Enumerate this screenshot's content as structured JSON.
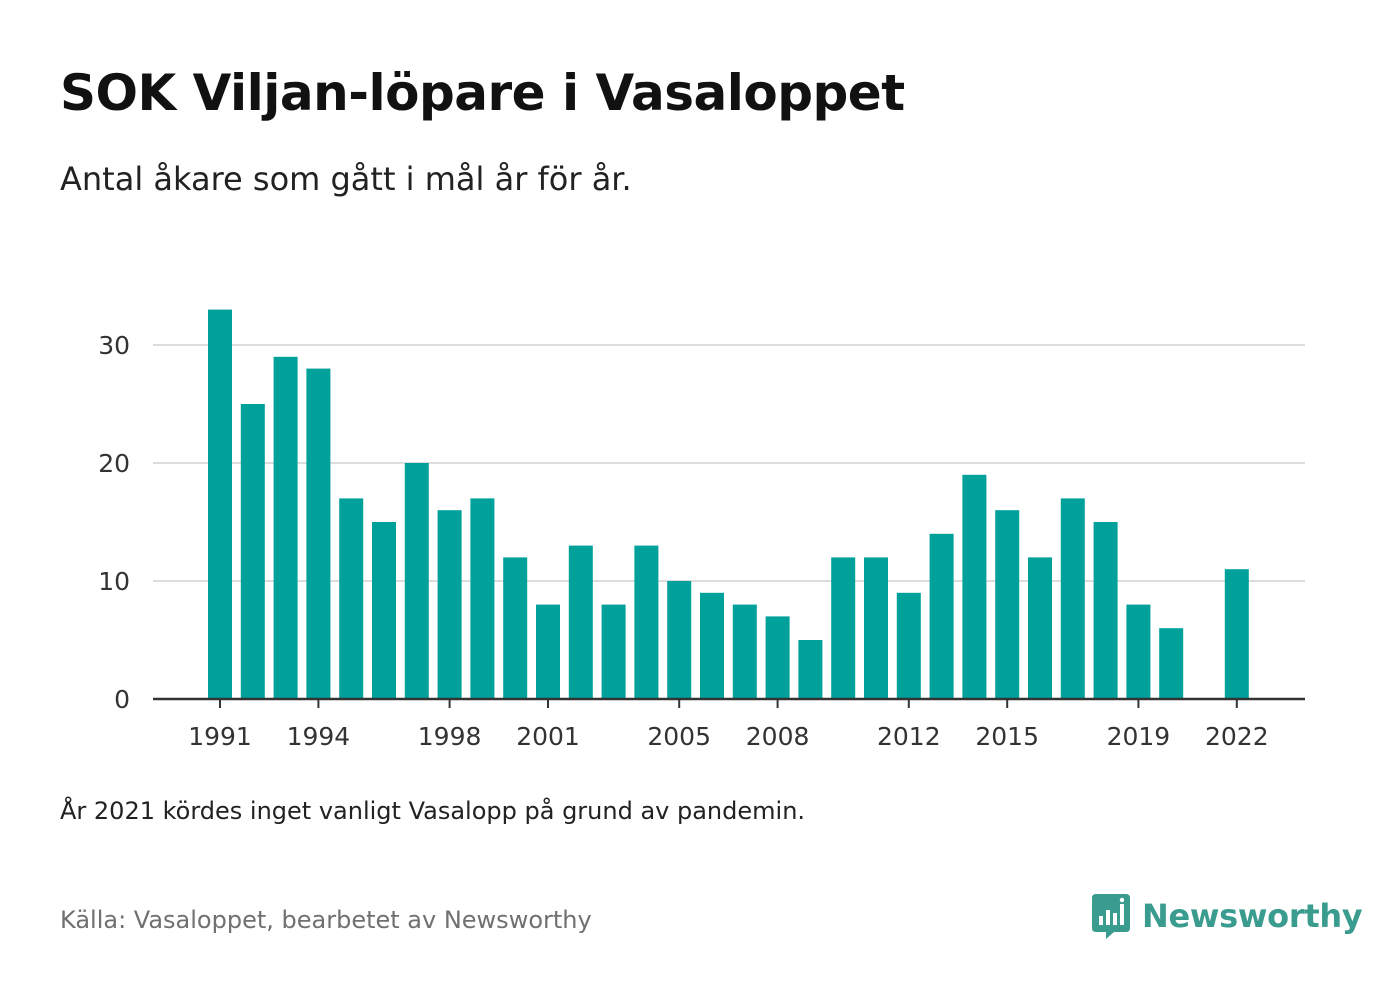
{
  "title": "SOK Viljan-löpare i Vasaloppet",
  "subtitle": "Antal åkare som gått i mål år för år.",
  "note": "År 2021 kördes inget vanligt Vasalopp på grund av pandemin.",
  "source": "Källa: Vasaloppet, bearbetet av Newsworthy",
  "brand": {
    "name": "Newsworthy",
    "icon": "newsworthy-logo-icon"
  },
  "colors": {
    "bar": "#00a19a",
    "grid": "#dddddd",
    "axis": "#333333",
    "brand": "#3a9b8f"
  },
  "chart_data": {
    "type": "bar",
    "title": "SOK Viljan-löpare i Vasaloppet",
    "subtitle": "Antal åkare som gått i mål år för år.",
    "xlabel": "",
    "ylabel": "",
    "x": [
      1991,
      1992,
      1993,
      1994,
      1995,
      1996,
      1997,
      1998,
      1999,
      2000,
      2001,
      2002,
      2003,
      2004,
      2005,
      2006,
      2007,
      2008,
      2009,
      2010,
      2011,
      2012,
      2013,
      2014,
      2015,
      2016,
      2017,
      2018,
      2019,
      2020,
      2021,
      2022
    ],
    "values": [
      33,
      25,
      29,
      28,
      17,
      15,
      20,
      16,
      17,
      12,
      8,
      13,
      8,
      13,
      10,
      9,
      8,
      7,
      5,
      12,
      12,
      9,
      14,
      19,
      16,
      12,
      17,
      15,
      8,
      6,
      null,
      11
    ],
    "x_tick_labels": [
      "1991",
      "1994",
      "1998",
      "2001",
      "2005",
      "2008",
      "2012",
      "2015",
      "2019",
      "2022"
    ],
    "y_ticks": [
      0,
      10,
      20,
      30
    ],
    "ylim": [
      0,
      33
    ],
    "grid": true,
    "legend": "none"
  }
}
